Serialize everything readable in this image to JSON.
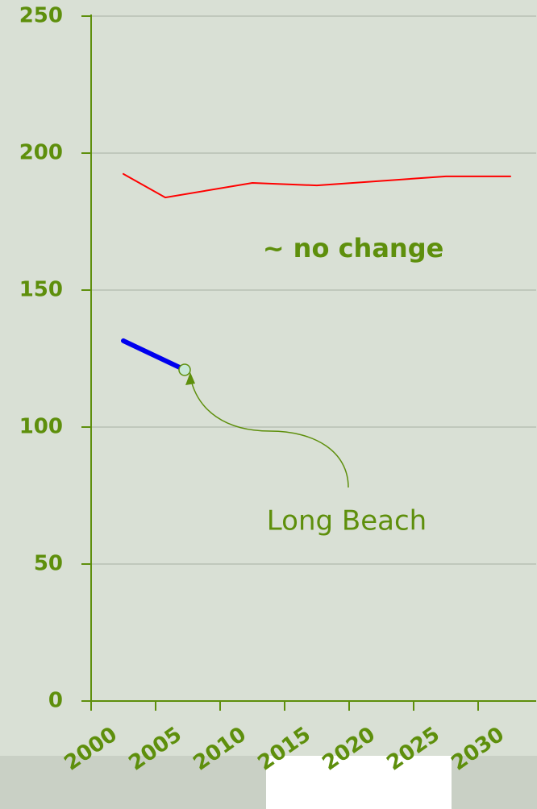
{
  "chart_data": {
    "type": "line",
    "x": [
      2002.5,
      2005.75,
      2012.5,
      2017.5,
      2027.5,
      2032.5
    ],
    "series": [
      {
        "color": "#ff0000",
        "values": [
          192.4,
          183.8,
          189.1,
          188.2,
          191.5,
          191.5
        ]
      },
      {
        "color": "#0000ee",
        "x": [
          2002.5,
          2007.25
        ],
        "values": [
          131.5,
          120.9
        ]
      }
    ],
    "annotations": [
      "~ no change",
      "Long Beach"
    ],
    "xlim": [
      2000,
      2034.5
    ],
    "xticks": [
      2000,
      2005,
      2010,
      2015,
      2020,
      2025,
      2030
    ],
    "ylim": [
      0,
      250
    ],
    "yticks": [
      0,
      50,
      100,
      150,
      200,
      250
    ],
    "grid": true
  }
}
